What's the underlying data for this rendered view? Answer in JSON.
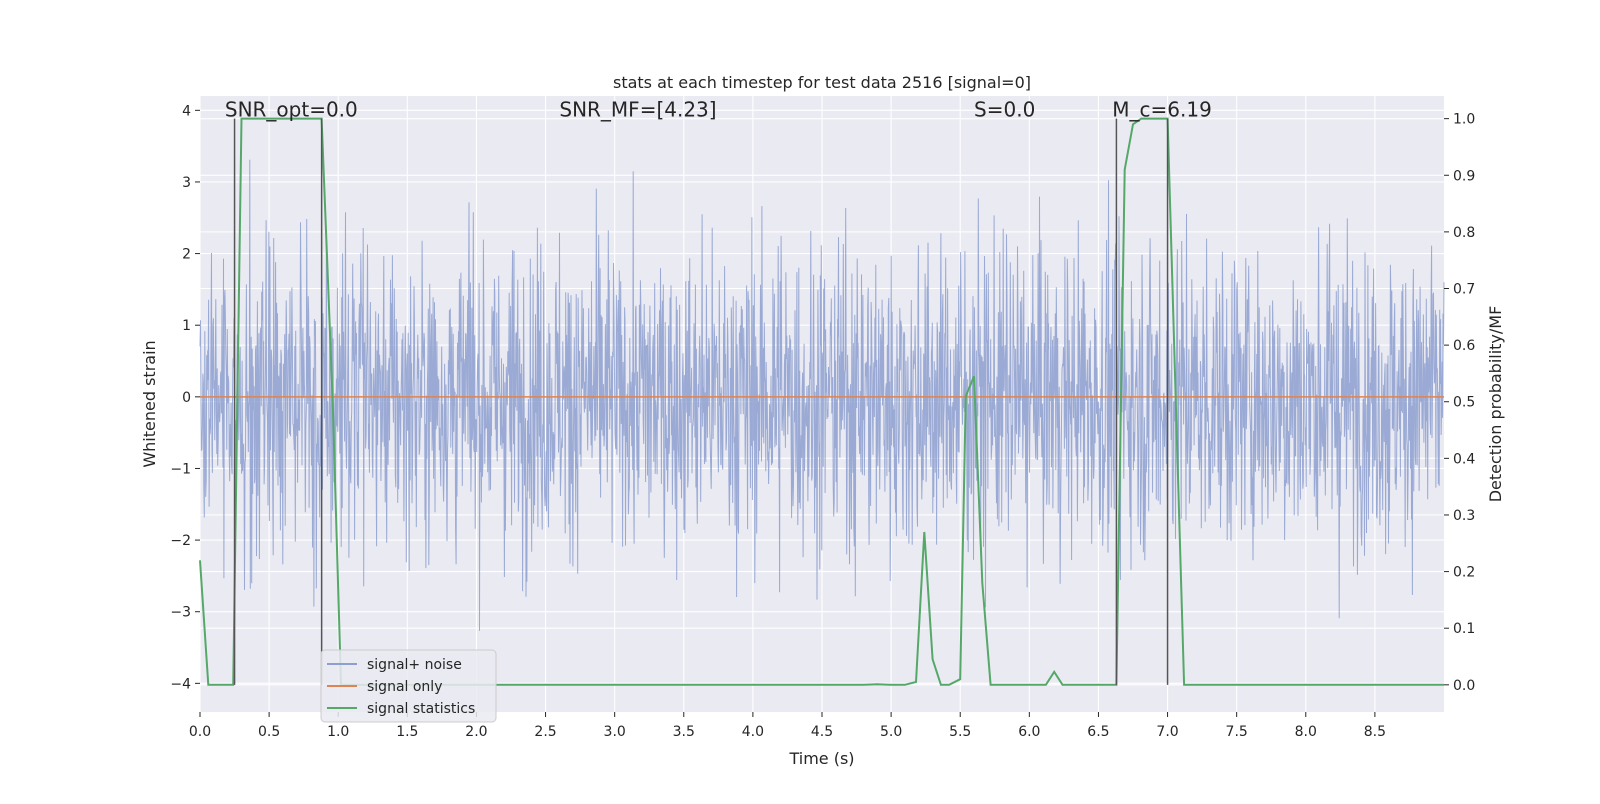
{
  "chart_data": {
    "type": "line",
    "title": "stats at each timestep for test data 2516 [signal=0]",
    "xlabel": "Time (s)",
    "ylabel_left": "Whitened strain",
    "ylabel_right": "Detection probability/MF",
    "xlim": [
      0.0,
      9.0
    ],
    "ylim_left": [
      -4.4,
      4.2
    ],
    "ylim_right": [
      -0.048,
      1.04
    ],
    "x_ticks": [
      0.0,
      0.5,
      1.0,
      1.5,
      2.0,
      2.5,
      3.0,
      3.5,
      4.0,
      4.5,
      5.0,
      5.5,
      6.0,
      6.5,
      7.0,
      7.5,
      8.0,
      8.5
    ],
    "x_tick_labels": [
      "0.0",
      "0.5",
      "1.0",
      "1.5",
      "2.0",
      "2.5",
      "3.0",
      "3.5",
      "4.0",
      "4.5",
      "5.0",
      "5.5",
      "6.0",
      "6.5",
      "7.0",
      "7.5",
      "8.0",
      "8.5"
    ],
    "y_ticks_left": [
      -4,
      -3,
      -2,
      -1,
      0,
      1,
      2,
      3,
      4
    ],
    "y_tick_labels_left": [
      "−4",
      "−3",
      "−2",
      "−1",
      "0",
      "1",
      "2",
      "3",
      "4"
    ],
    "y_ticks_right": [
      0.0,
      0.1,
      0.2,
      0.3,
      0.4,
      0.5,
      0.6,
      0.7,
      0.8,
      0.9,
      1.0
    ],
    "y_tick_labels_right": [
      "0.0",
      "0.1",
      "0.2",
      "0.3",
      "0.4",
      "0.5",
      "0.6",
      "0.7",
      "0.8",
      "0.9",
      "1.0"
    ],
    "grid": true,
    "legend_position": "lower-left",
    "annotations": [
      {
        "id": "snr-opt",
        "text": "SNR_opt=0.0",
        "x": 0.18,
        "y_right": 1.0
      },
      {
        "id": "snr-mf",
        "text": "SNR_MF=[4.23]",
        "x": 2.6,
        "y_right": 1.0
      },
      {
        "id": "s-stat",
        "text": "S=0.0",
        "x": 5.6,
        "y_right": 1.0
      },
      {
        "id": "mc",
        "text": "M_c=6.19",
        "x": 6.6,
        "y_right": 1.0
      }
    ],
    "vertical_markers": [
      {
        "x": 0.25,
        "y_top": 1.0,
        "y_bottom": 0.0
      },
      {
        "x": 0.88,
        "y_top": 1.0,
        "y_bottom": 0.0
      },
      {
        "x": 6.63,
        "y_top": 1.0,
        "y_bottom": 0.0
      },
      {
        "x": 7.0,
        "y_top": 1.0,
        "y_bottom": 0.0
      }
    ],
    "series": [
      {
        "name": "signal+ noise",
        "color": "#8c9fcf",
        "axis": "left",
        "description": "whitened noise, roughly unit variance, 8192 Hz samples over 0-9 s",
        "x_range": [
          0.0,
          9.0
        ],
        "amplitude_range": [
          -3.7,
          3.8
        ]
      },
      {
        "name": "signal only",
        "color": "#dd8452",
        "axis": "left",
        "x": [
          0.0,
          9.0
        ],
        "values": [
          0.0,
          0.0
        ]
      },
      {
        "name": "signal statistics",
        "color": "#55a868",
        "axis": "right",
        "x": [
          0.0,
          0.06,
          0.12,
          0.24,
          0.3,
          0.36,
          0.42,
          0.48,
          0.54,
          0.6,
          0.66,
          0.72,
          0.78,
          0.84,
          0.88,
          0.96,
          1.02,
          1.08,
          1.2,
          1.5,
          2.0,
          2.5,
          3.0,
          3.5,
          4.0,
          4.5,
          4.8,
          4.9,
          5.0,
          5.1,
          5.18,
          5.24,
          5.3,
          5.36,
          5.42,
          5.5,
          5.54,
          5.6,
          5.66,
          5.72,
          5.8,
          5.9,
          6.0,
          6.12,
          6.18,
          6.24,
          6.3,
          6.4,
          6.5,
          6.63,
          6.69,
          6.75,
          6.81,
          6.87,
          6.93,
          7.0,
          7.06,
          7.12,
          7.2,
          7.5,
          8.0,
          8.5,
          9.0
        ],
        "values": [
          0.22,
          0.0,
          0.0,
          0.0,
          1.0,
          1.0,
          1.0,
          1.0,
          1.0,
          1.0,
          1.0,
          1.0,
          1.0,
          1.0,
          1.0,
          0.5,
          0.0,
          0.0,
          0.0,
          0.0,
          0.0,
          0.0,
          0.0,
          0.0,
          0.0,
          0.0,
          0.0,
          0.001,
          0.0,
          0.0,
          0.005,
          0.27,
          0.045,
          0.0,
          0.0,
          0.01,
          0.51,
          0.545,
          0.18,
          0.0,
          0.0,
          0.0,
          0.0,
          0.0,
          0.023,
          0.0,
          0.0,
          0.0,
          0.0,
          0.0,
          0.91,
          0.99,
          1.0,
          1.0,
          1.0,
          1.0,
          0.5,
          0.0,
          0.0,
          0.0,
          0.0,
          0.0,
          0.0
        ]
      }
    ],
    "style": {
      "background_color": "#eaeaf2",
      "grid_color": "#ffffff",
      "vline_color": "#555555"
    }
  }
}
